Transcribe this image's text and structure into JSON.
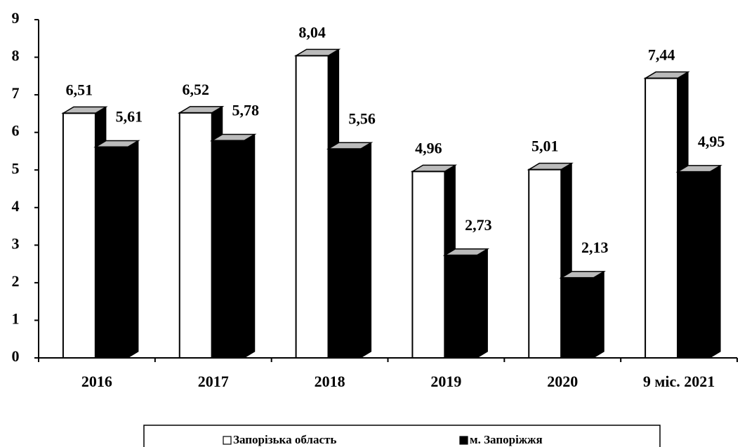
{
  "chart_data": {
    "type": "bar3d",
    "categories": [
      "2016",
      "2017",
      "2018",
      "2019",
      "2020",
      "9 міс. 2021"
    ],
    "series": [
      {
        "name": "Запорізька область",
        "color": "#ffffff",
        "values": [
          6.51,
          6.52,
          8.04,
          4.96,
          5.01,
          7.44
        ],
        "value_labels": [
          "6,51",
          "6,52",
          "8,04",
          "4,96",
          "5,01",
          "7,44"
        ]
      },
      {
        "name": "м. Запоріжжя",
        "color": "#000000",
        "values": [
          5.61,
          5.78,
          5.56,
          2.73,
          2.13,
          4.95
        ],
        "value_labels": [
          "5,61",
          "5,78",
          "5,56",
          "2,73",
          "2,13",
          "4,95"
        ]
      }
    ],
    "ylim": [
      0,
      9
    ],
    "yticks": [
      0,
      1,
      2,
      3,
      4,
      5,
      6,
      7,
      8,
      9
    ],
    "legend": "bottom"
  }
}
